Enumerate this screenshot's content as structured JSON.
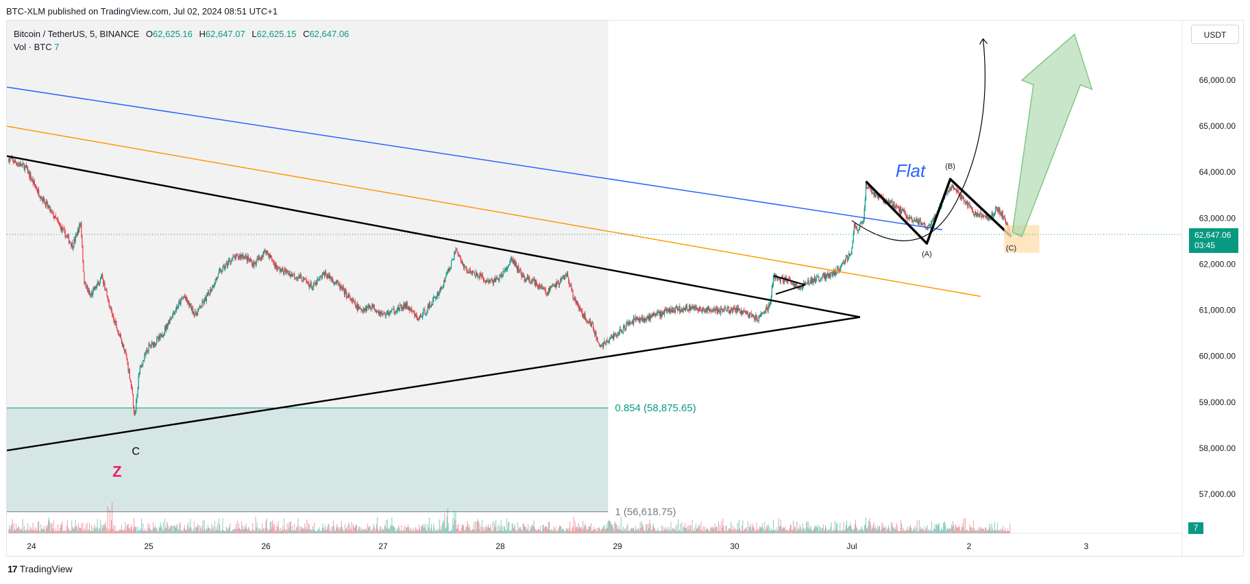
{
  "publisher_line": "BTC-XLM published on TradingView.com, Jul 02, 2024 08:51 UTC+1",
  "legend": {
    "symbol": "Bitcoin / TetherUS, 5, BINANCE",
    "ohlc": [
      {
        "k": "O",
        "v": "62,625.16"
      },
      {
        "k": "H",
        "v": "62,647.07"
      },
      {
        "k": "L",
        "v": "62,625.15"
      },
      {
        "k": "C",
        "v": "62,647.06"
      }
    ],
    "volume_label": "Vol · BTC",
    "volume_value": "7"
  },
  "currency_button": "USDT",
  "last_price": {
    "price": "62,647.06",
    "countdown": "03:45"
  },
  "volume_tag": "7",
  "footer_logo": {
    "mark": "17",
    "text": "TradingView"
  },
  "colors": {
    "up": "#089981",
    "down": "#f23645",
    "blue_line": "#2962ff",
    "orange_line": "#ff9800",
    "fib_fill": "#d6e6e4",
    "arrow_green": "#a5d6a7",
    "target_box": "#ffe0b2"
  },
  "chart_data": {
    "type": "candlestick",
    "y_axis": {
      "min": 56200,
      "max": 67300,
      "ticks": [
        "57,000.00",
        "58,000.00",
        "59,000.00",
        "60,000.00",
        "61,000.00",
        "62,000.00",
        "63,000.00",
        "64,000.00",
        "65,000.00",
        "66,000.00"
      ]
    },
    "x_axis": {
      "labels": [
        "24",
        "25",
        "26",
        "27",
        "28",
        "29",
        "30",
        "Jul",
        "2",
        "3"
      ],
      "day_range": [
        23.79,
        32.96
      ]
    },
    "price_path": [
      [
        23.8,
        64300
      ],
      [
        23.95,
        64100
      ],
      [
        24.05,
        63600
      ],
      [
        24.2,
        63000
      ],
      [
        24.35,
        62400
      ],
      [
        24.42,
        62900
      ],
      [
        24.45,
        61600
      ],
      [
        24.5,
        61300
      ],
      [
        24.6,
        61700
      ],
      [
        24.7,
        60800
      ],
      [
        24.8,
        60100
      ],
      [
        24.85,
        59400
      ],
      [
        24.88,
        58700
      ],
      [
        24.92,
        59700
      ],
      [
        25.0,
        60200
      ],
      [
        25.1,
        60400
      ],
      [
        25.2,
        60900
      ],
      [
        25.3,
        61300
      ],
      [
        25.4,
        60900
      ],
      [
        25.5,
        61300
      ],
      [
        25.6,
        61800
      ],
      [
        25.7,
        62100
      ],
      [
        25.8,
        62200
      ],
      [
        25.9,
        62000
      ],
      [
        26.0,
        62300
      ],
      [
        26.1,
        61900
      ],
      [
        26.2,
        61800
      ],
      [
        26.3,
        61700
      ],
      [
        26.4,
        61500
      ],
      [
        26.5,
        61800
      ],
      [
        26.6,
        61600
      ],
      [
        26.7,
        61300
      ],
      [
        26.8,
        61000
      ],
      [
        26.9,
        61100
      ],
      [
        27.0,
        60900
      ],
      [
        27.1,
        61000
      ],
      [
        27.2,
        61100
      ],
      [
        27.3,
        60800
      ],
      [
        27.4,
        61100
      ],
      [
        27.5,
        61500
      ],
      [
        27.62,
        62300
      ],
      [
        27.7,
        61900
      ],
      [
        27.8,
        61800
      ],
      [
        27.9,
        61600
      ],
      [
        28.0,
        61700
      ],
      [
        28.1,
        62100
      ],
      [
        28.2,
        61700
      ],
      [
        28.3,
        61600
      ],
      [
        28.4,
        61400
      ],
      [
        28.5,
        61600
      ],
      [
        28.57,
        61800
      ],
      [
        28.62,
        61300
      ],
      [
        28.7,
        60900
      ],
      [
        28.78,
        60700
      ],
      [
        28.85,
        60200
      ],
      [
        28.95,
        60400
      ],
      [
        29.05,
        60600
      ],
      [
        29.15,
        60800
      ],
      [
        29.3,
        60850
      ],
      [
        29.45,
        61000
      ],
      [
        29.6,
        61050
      ],
      [
        29.75,
        61000
      ],
      [
        29.9,
        61000
      ],
      [
        30.05,
        61000
      ],
      [
        30.2,
        60800
      ],
      [
        30.3,
        61100
      ],
      [
        30.33,
        61700
      ],
      [
        30.45,
        61650
      ],
      [
        30.55,
        61500
      ],
      [
        30.65,
        61650
      ],
      [
        30.8,
        61750
      ],
      [
        30.9,
        61900
      ],
      [
        31.0,
        62300
      ],
      [
        31.02,
        62900
      ],
      [
        31.05,
        62700
      ],
      [
        31.1,
        63000
      ],
      [
        31.12,
        63700
      ],
      [
        31.2,
        63500
      ],
      [
        31.35,
        63300
      ],
      [
        31.5,
        63000
      ],
      [
        31.6,
        62900
      ],
      [
        31.65,
        62800
      ],
      [
        31.72,
        63100
      ],
      [
        31.8,
        63500
      ],
      [
        31.85,
        63700
      ],
      [
        31.95,
        63400
      ],
      [
        32.05,
        63100
      ],
      [
        32.15,
        63000
      ],
      [
        32.2,
        63100
      ],
      [
        32.25,
        63200
      ],
      [
        32.3,
        63000
      ],
      [
        32.35,
        62647
      ]
    ],
    "drawings": {
      "blue_trendline": [
        [
          23.79,
          65850
        ],
        [
          31.77,
          62750
        ]
      ],
      "orange_trendline": [
        [
          23.79,
          65000
        ],
        [
          32.1,
          61300
        ]
      ],
      "triangle_upper": [
        [
          23.79,
          64350
        ],
        [
          31.07,
          60850
        ]
      ],
      "triangle_lower": [
        [
          23.79,
          57950
        ],
        [
          31.07,
          60850
        ]
      ],
      "small_pennant": [
        [
          30.33,
          61750
        ],
        [
          30.6,
          61550
        ],
        [
          30.35,
          61350
        ]
      ],
      "flat_pattern": [
        [
          31.12,
          63800
        ],
        [
          31.64,
          62450
        ],
        [
          31.84,
          63850
        ],
        [
          32.36,
          62600
        ]
      ],
      "projection_curve": [
        [
          31.0,
          62950
        ],
        [
          31.6,
          62480
        ],
        [
          31.9,
          63400
        ],
        [
          32.05,
          64700
        ],
        [
          32.12,
          66900
        ]
      ],
      "projection_arrow_tip": [
        32.12,
        66900
      ],
      "big_arrow": [
        [
          32.37,
          62700
        ],
        [
          32.55,
          65900
        ],
        [
          32.45,
          66000
        ],
        [
          32.9,
          67000
        ],
        [
          33.05,
          65800
        ],
        [
          32.95,
          65900
        ],
        [
          32.45,
          62600
        ]
      ],
      "target_box": {
        "x": [
          32.3,
          32.6
        ],
        "y": [
          62250,
          62850
        ]
      },
      "flat_label_at": [
        31.5,
        63850
      ]
    },
    "fibonacci": {
      "levels": [
        {
          "label": "0.854 (58,875.65)",
          "price": 58875.65
        },
        {
          "label": "1 (56,618.75)",
          "price": 56618.75
        }
      ],
      "x_end_day": 28.92,
      "shade_until_day": 28.92
    },
    "labels": [
      {
        "text": "Flat",
        "day": 31.5,
        "price": 63900
      },
      {
        "text": "(A)",
        "day": 31.64,
        "price": 62170
      },
      {
        "text": "(B)",
        "day": 31.84,
        "price": 64080
      },
      {
        "text": "(C)",
        "day": 32.36,
        "price": 62300
      },
      {
        "text": "Z",
        "day": 24.73,
        "price": 57380
      },
      {
        "text": "C",
        "day": 24.89,
        "price": 57860
      }
    ],
    "volume": {
      "series_name": "Vol · BTC",
      "last_value": 7
    }
  }
}
